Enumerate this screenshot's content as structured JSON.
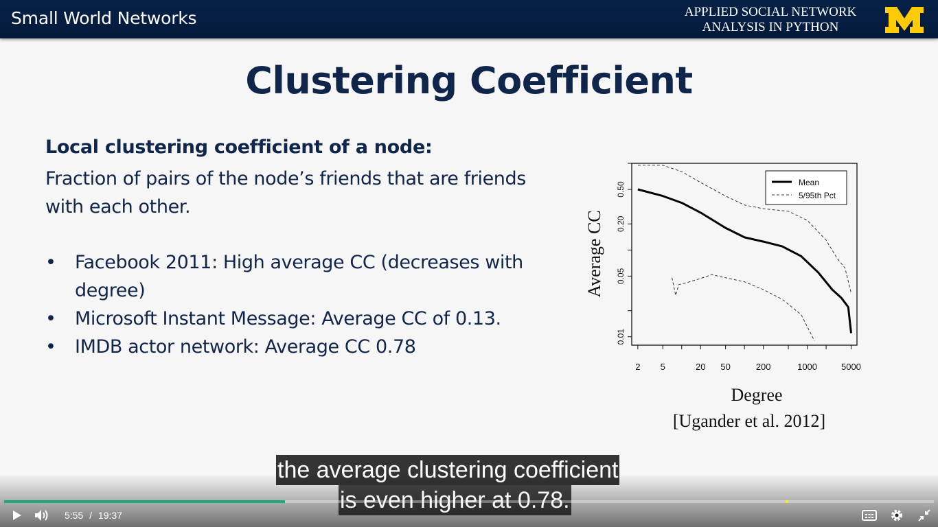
{
  "header": {
    "section_title": "Small World Networks",
    "course_line1": "APPLIED SOCIAL NETWORK",
    "course_line2": "ANALYSIS IN PYTHON",
    "logo_color": "#ffcb05",
    "band_color": "#03193a"
  },
  "slide": {
    "title": "Clustering Coefficient",
    "definition_heading": "Local clustering coefficient of a node:",
    "definition_text": "Fraction of pairs of the node’s friends that are friends with each other.",
    "bullets": [
      "Facebook 2011:  High average CC (decreases with degree)",
      "Microsoft Instant Message:  Average CC of 0.13.",
      "IMDB actor network:  Average CC 0.78"
    ],
    "citation": "[Ugander et al. 2012]"
  },
  "chart_data": {
    "type": "line",
    "xlabel": "Degree",
    "ylabel": "Average CC",
    "xscale": "log",
    "yscale": "log",
    "xlim": [
      1.6,
      6200
    ],
    "ylim": [
      0.008,
      1.0
    ],
    "x_ticks": [
      "2",
      "5",
      "20",
      "50",
      "200",
      "1000",
      "5000"
    ],
    "y_ticks": [
      "0.01",
      "0.05",
      "0.20",
      "0.50"
    ],
    "legend_position": "top-right",
    "series": [
      {
        "name": "Mean",
        "style": "solid",
        "x": [
          2,
          5,
          10,
          20,
          50,
          100,
          200,
          400,
          800,
          1500,
          2500,
          3500,
          4500,
          5000
        ],
        "y": [
          0.5,
          0.42,
          0.35,
          0.27,
          0.18,
          0.14,
          0.125,
          0.11,
          0.085,
          0.055,
          0.035,
          0.028,
          0.022,
          0.011
        ]
      },
      {
        "name": "5/95th Pct",
        "style": "dashed",
        "x": [
          2,
          5,
          10,
          20,
          50,
          100,
          200,
          500,
          1000,
          2000,
          3000,
          4000,
          5000
        ],
        "y": [
          0.95,
          0.95,
          0.8,
          0.6,
          0.42,
          0.33,
          0.3,
          0.28,
          0.22,
          0.13,
          0.08,
          0.062,
          0.032
        ]
      },
      {
        "name": "5/95th Pct",
        "style": "dashed",
        "x": [
          7,
          8,
          9,
          12,
          20,
          30,
          50,
          100,
          200,
          400,
          800,
          1300
        ],
        "y": [
          0.048,
          0.03,
          0.04,
          0.042,
          0.047,
          0.052,
          0.048,
          0.043,
          0.035,
          0.027,
          0.018,
          0.009
        ]
      }
    ]
  },
  "captions": {
    "line1": "the average clustering coefficient",
    "line2": "is even higher at 0.78."
  },
  "player": {
    "current_time": "5:55",
    "separator": "/",
    "duration": "19:37",
    "progress": 0.302,
    "accent_color": "#1fa67a"
  },
  "icons": {
    "play": "play-icon",
    "volume": "volume-icon",
    "captions": "captions-icon",
    "settings": "gear-icon",
    "fullscreen": "exit-fullscreen-icon"
  }
}
